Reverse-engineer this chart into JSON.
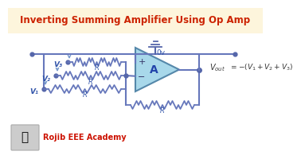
{
  "title": "Inverting Summing Amplifier Using Op Amp",
  "title_color": "#cc2200",
  "title_bg": "#fdf5dc",
  "bg_color": "#ffffff",
  "eq_text": "V",
  "eq_sub": "out",
  "eq_rest": " = -(V₁ + V₂ + V₃)",
  "label_color": "#3355aa",
  "gnd_label": "0v",
  "watermark": "Rojib EEE Academy",
  "watermark_color": "#cc1100",
  "v_labels": [
    "V₁",
    "V₂",
    "V₃"
  ],
  "r_label": "R",
  "amp_label": "A",
  "line_color": "#6677bb",
  "resistor_color": "#6677bb",
  "amp_fill": "#a8d8ea",
  "amp_border": "#5588aa",
  "dot_color": "#5566aa",
  "ground_color": "#5566aa",
  "arrow_color": "#7799cc",
  "footer_bg": "#f5f5f5"
}
